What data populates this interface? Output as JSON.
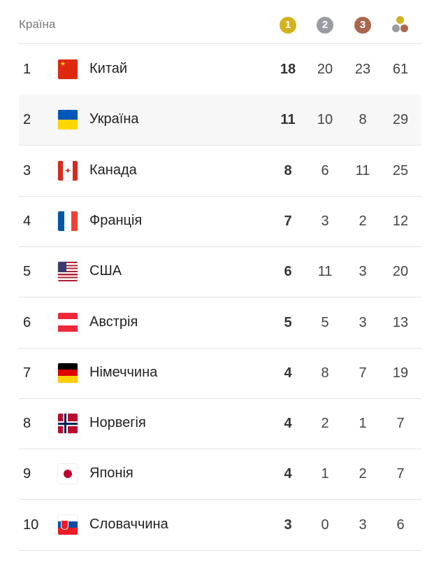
{
  "header": {
    "country_label": "Країна",
    "gold": "1",
    "silver": "2",
    "bronze": "3"
  },
  "colors": {
    "gold": "#d4b21d",
    "silver": "#9a9ca3",
    "bronze": "#a8674e"
  },
  "rows": [
    {
      "rank": "1",
      "country": "Китай",
      "flag": "china",
      "gold": "18",
      "silver": "20",
      "bronze": "23",
      "total": "61"
    },
    {
      "rank": "2",
      "country": "Україна",
      "flag": "ukraine",
      "gold": "11",
      "silver": "10",
      "bronze": "8",
      "total": "29"
    },
    {
      "rank": "3",
      "country": "Канада",
      "flag": "canada",
      "gold": "8",
      "silver": "6",
      "bronze": "11",
      "total": "25"
    },
    {
      "rank": "4",
      "country": "Франція",
      "flag": "france",
      "gold": "7",
      "silver": "3",
      "bronze": "2",
      "total": "12"
    },
    {
      "rank": "5",
      "country": "США",
      "flag": "usa",
      "gold": "6",
      "silver": "11",
      "bronze": "3",
      "total": "20"
    },
    {
      "rank": "6",
      "country": "Австрія",
      "flag": "austria",
      "gold": "5",
      "silver": "5",
      "bronze": "3",
      "total": "13"
    },
    {
      "rank": "7",
      "country": "Німеччина",
      "flag": "germany",
      "gold": "4",
      "silver": "8",
      "bronze": "7",
      "total": "19"
    },
    {
      "rank": "8",
      "country": "Норвегія",
      "flag": "norway",
      "gold": "4",
      "silver": "2",
      "bronze": "1",
      "total": "7"
    },
    {
      "rank": "9",
      "country": "Японія",
      "flag": "japan",
      "gold": "4",
      "silver": "1",
      "bronze": "2",
      "total": "7"
    },
    {
      "rank": "10",
      "country": "Словаччина",
      "flag": "slovakia",
      "gold": "3",
      "silver": "0",
      "bronze": "3",
      "total": "6"
    }
  ]
}
